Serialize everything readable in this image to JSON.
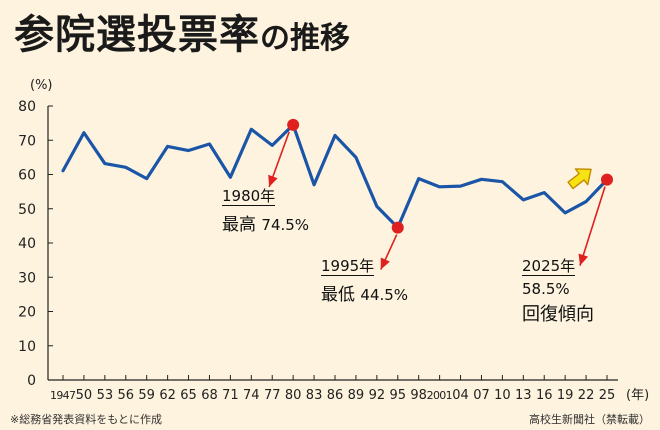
{
  "header": {
    "title_main": "参院選投票率",
    "title_tail": "の推移"
  },
  "footer": {
    "source": "※総務省発表資料をもとに作成",
    "credit": "高校生新聞社（禁転載）"
  },
  "annotations": {
    "a1980": {
      "year": "1980年",
      "label": "最高",
      "value": "74.5%"
    },
    "a1995": {
      "year": "1995年",
      "label": "最低",
      "value": "44.5%"
    },
    "a2025": {
      "year": "2025年",
      "value": "58.5%",
      "label": "回復傾向"
    }
  },
  "colors": {
    "line": "#1a55a8",
    "marker": "#e0201e",
    "arrow_up": "#f7e312",
    "background": "#fdf3de"
  },
  "chart_data": {
    "type": "line",
    "title": "参院選投票率の推移",
    "ylabel": "(%)",
    "xlabel": "(年)",
    "ylim": [
      0,
      80
    ],
    "yticks": [
      0,
      10,
      20,
      30,
      40,
      50,
      60,
      70,
      80
    ],
    "x_tick_labels": [
      "1947",
      "50",
      "53",
      "56",
      "59",
      "62",
      "65",
      "68",
      "71",
      "74",
      "77",
      "80",
      "83",
      "86",
      "89",
      "92",
      "95",
      "98",
      "2001",
      "04",
      "07",
      "10",
      "13",
      "16",
      "19",
      "22",
      "25"
    ],
    "x": [
      1947,
      1950,
      1953,
      1956,
      1959,
      1962,
      1965,
      1968,
      1971,
      1974,
      1977,
      1980,
      1983,
      1986,
      1989,
      1992,
      1995,
      1998,
      2001,
      2004,
      2007,
      2010,
      2013,
      2016,
      2019,
      2022,
      2025
    ],
    "series": [
      {
        "values": [
          61.1,
          72.2,
          63.2,
          62.1,
          58.8,
          68.2,
          67.0,
          68.9,
          59.2,
          73.2,
          68.5,
          74.5,
          57.0,
          71.4,
          65.0,
          50.7,
          44.5,
          58.8,
          56.4,
          56.6,
          58.6,
          57.9,
          52.6,
          54.7,
          48.8,
          52.1,
          58.5
        ]
      }
    ],
    "highlighted_points": [
      {
        "x": 1980,
        "y": 74.5
      },
      {
        "x": 1995,
        "y": 44.5
      },
      {
        "x": 2025,
        "y": 58.5
      }
    ],
    "grid": false
  }
}
